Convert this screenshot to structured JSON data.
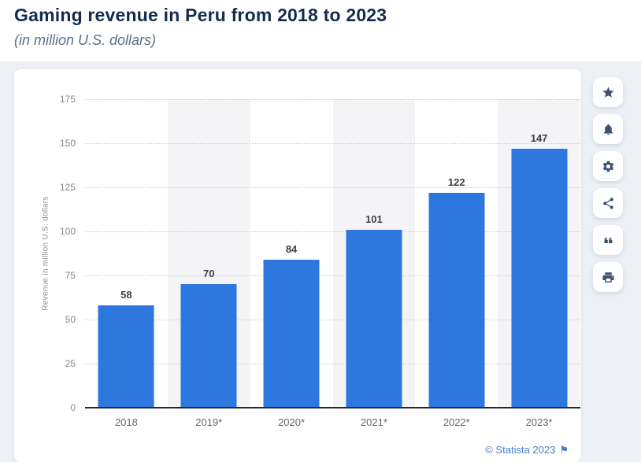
{
  "header": {
    "title": "Gaming revenue in Peru from 2018 to 2023",
    "subtitle": "(in million U.S. dollars)"
  },
  "chart_data": {
    "type": "bar",
    "title": "Gaming revenue in Peru from 2018 to 2023",
    "subtitle": "(in million U.S. dollars)",
    "categories": [
      "2018",
      "2019*",
      "2020*",
      "2021*",
      "2022*",
      "2023*"
    ],
    "values": [
      58,
      70,
      84,
      101,
      122,
      147
    ],
    "xlabel": "",
    "ylabel": "Revenue in million U.S. dollars",
    "ylim": [
      0,
      175
    ],
    "yticks": [
      0,
      25,
      50,
      75,
      100,
      125,
      150,
      175
    ],
    "grid": "horizontal-dotted",
    "legend": "none",
    "bar_color": "#2d77de",
    "alternating_band_color": "#f4f4f6",
    "value_labels_shown": true
  },
  "toolbar": {
    "buttons": [
      {
        "name": "favorite-button",
        "icon": "star-icon"
      },
      {
        "name": "alert-button",
        "icon": "bell-icon"
      },
      {
        "name": "settings-button",
        "icon": "gear-icon"
      },
      {
        "name": "share-button",
        "icon": "share-icon"
      },
      {
        "name": "citation-button",
        "icon": "quote-icon"
      },
      {
        "name": "print-button",
        "icon": "print-icon"
      }
    ]
  },
  "footer": {
    "credit": "© Statista 2023",
    "flag_icon": "flag-icon",
    "credit_color": "#4a7cc9"
  }
}
